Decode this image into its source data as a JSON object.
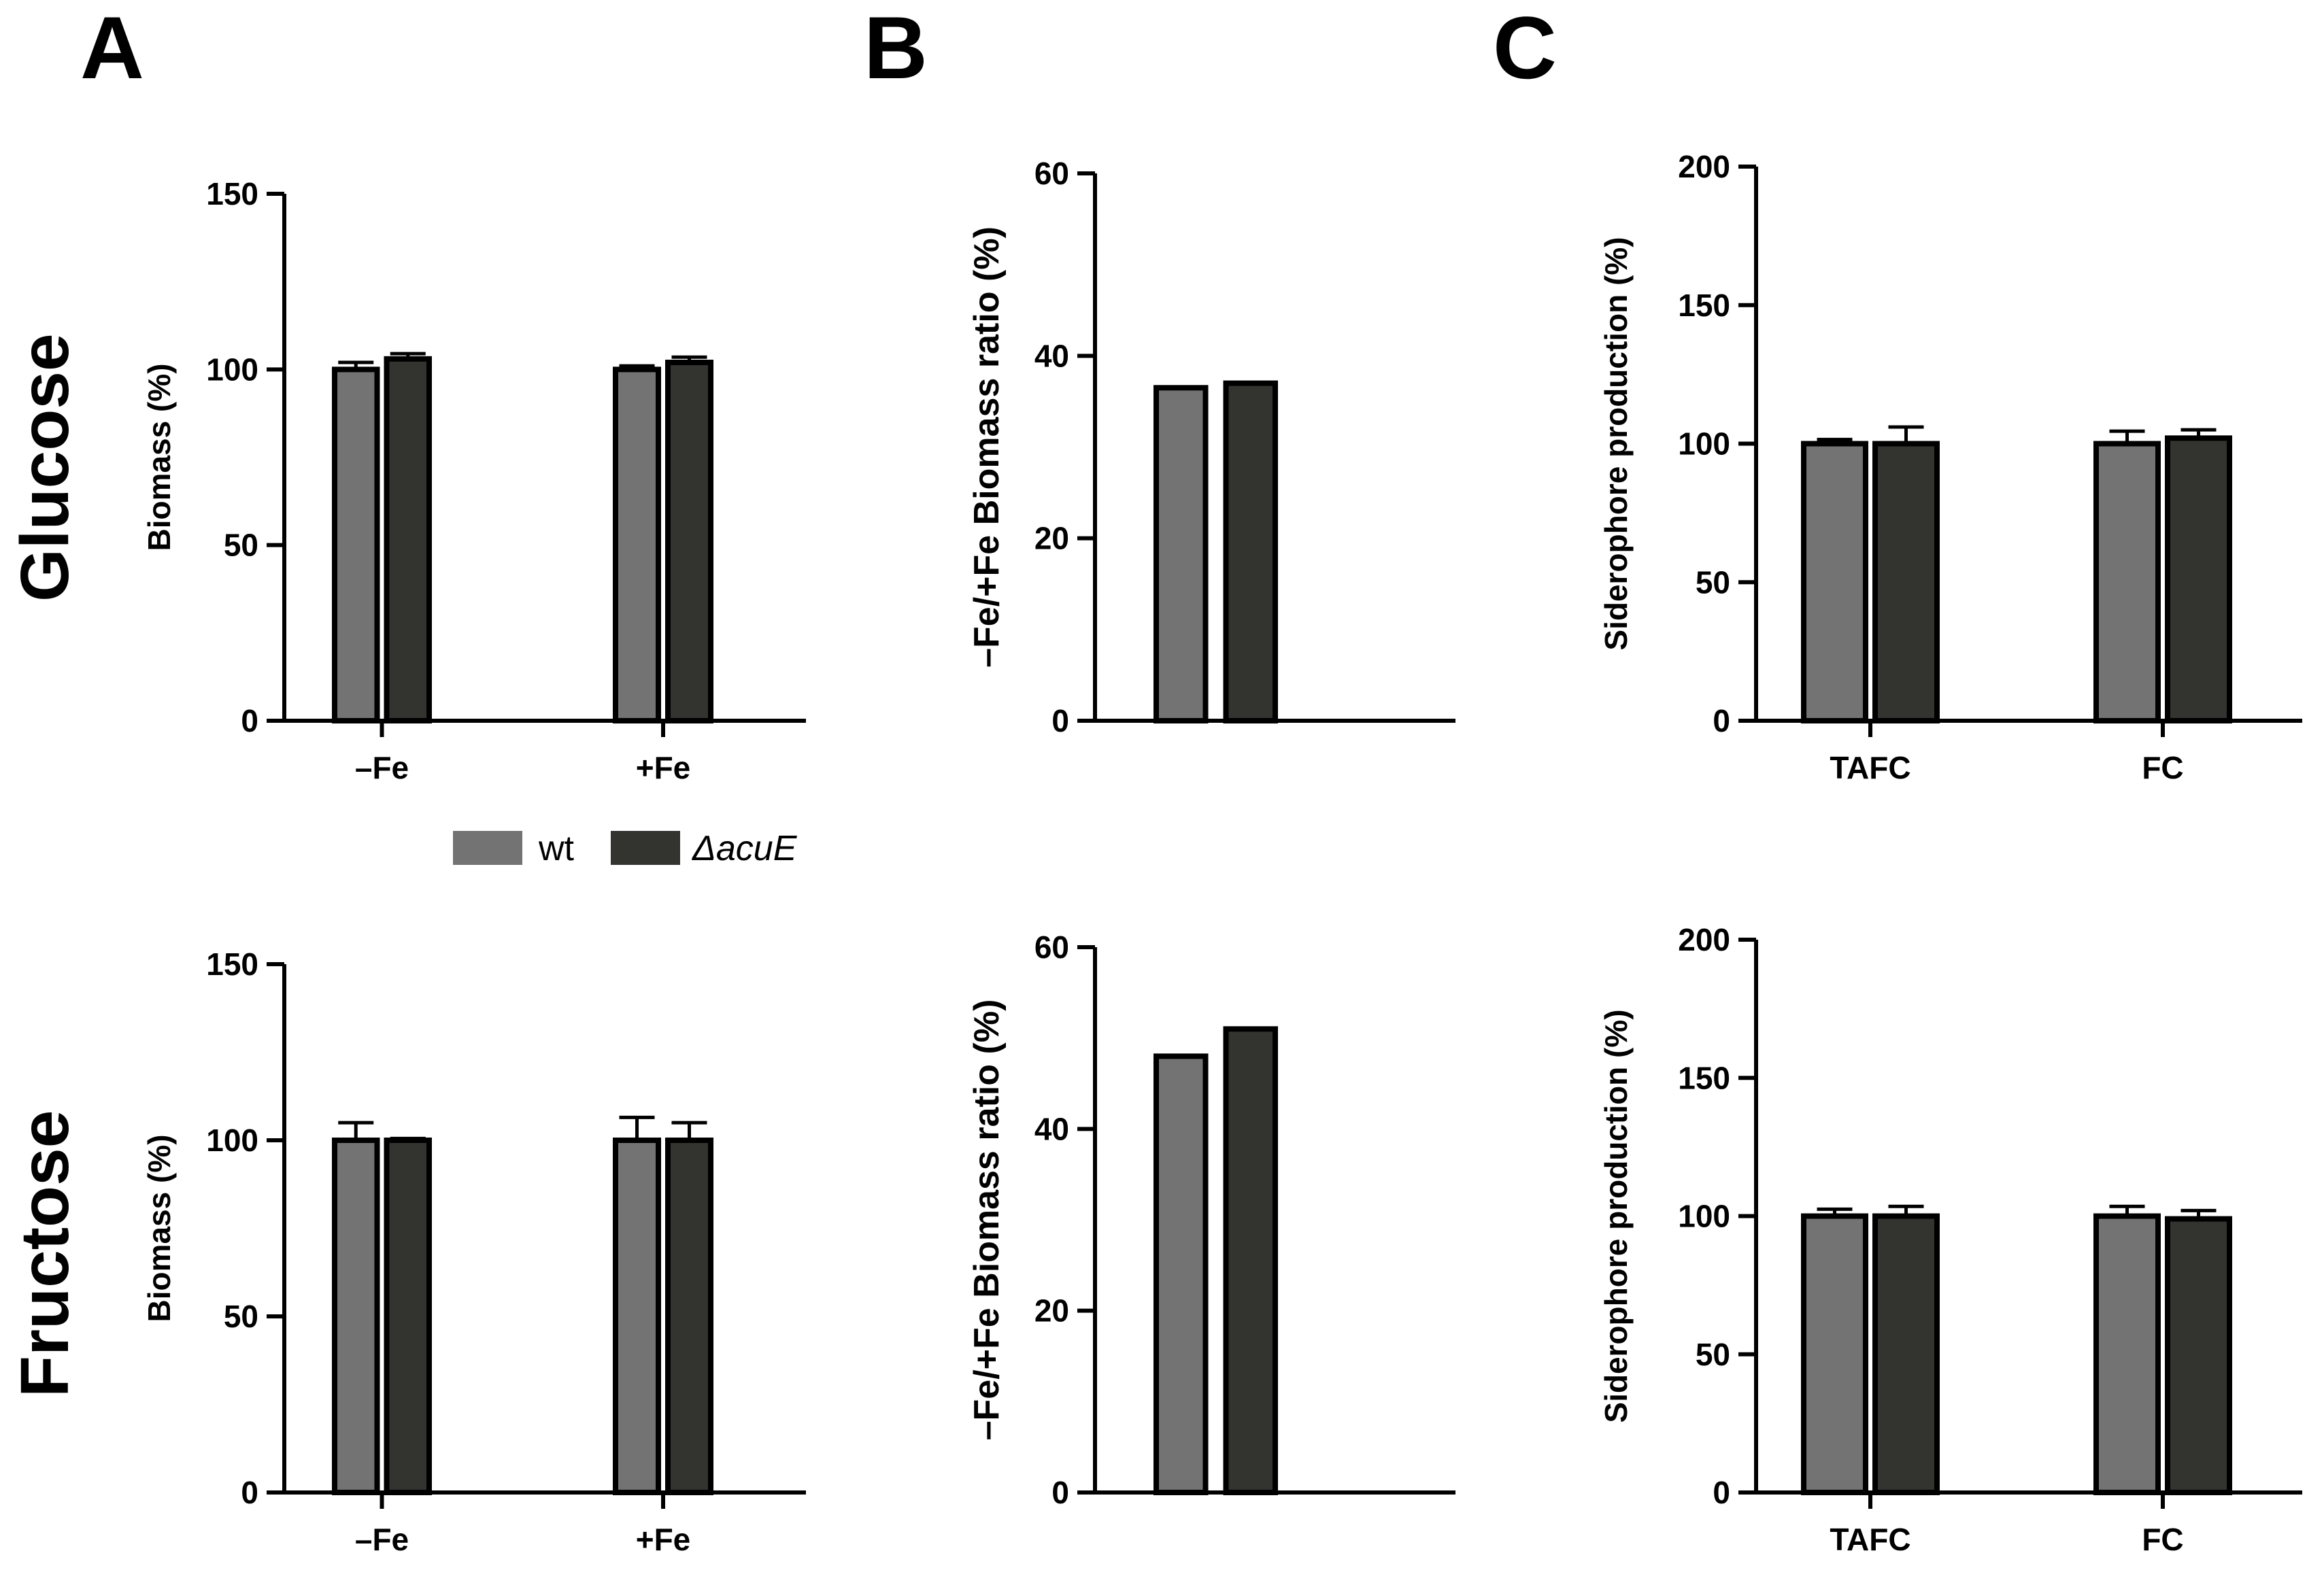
{
  "panels": {
    "A": "A",
    "B": "B",
    "C": "C"
  },
  "rows": {
    "glucose": "Glucose",
    "fructose": "Fructose"
  },
  "legend": {
    "wt": {
      "label": "wt",
      "color": "#737373"
    },
    "acuE": {
      "label": "ΔacuE",
      "color": "#333330"
    }
  },
  "chart_data": [
    {
      "id": "A-glucose",
      "type": "bar",
      "title": "",
      "xlabel": "",
      "ylabel": "Biomass (%)",
      "ylim": [
        0,
        150
      ],
      "yticks": [
        0,
        50,
        100,
        150
      ],
      "categories": [
        "–Fe",
        "+Fe"
      ],
      "series": [
        {
          "name": "wt",
          "values": [
            100,
            100
          ],
          "errors": [
            2,
            1
          ]
        },
        {
          "name": "ΔacuE",
          "values": [
            103,
            102
          ],
          "errors": [
            1.5,
            1.5
          ]
        }
      ]
    },
    {
      "id": "B-glucose",
      "type": "bar",
      "title": "",
      "xlabel": "",
      "ylabel": "–Fe/+Fe Biomass ratio (%)",
      "ylim": [
        0,
        60
      ],
      "yticks": [
        0,
        20,
        40,
        60
      ],
      "categories": [
        ""
      ],
      "series": [
        {
          "name": "wt",
          "values": [
            36.5
          ],
          "errors": [
            0
          ]
        },
        {
          "name": "ΔacuE",
          "values": [
            37
          ],
          "errors": [
            0
          ]
        }
      ]
    },
    {
      "id": "C-glucose",
      "type": "bar",
      "title": "",
      "xlabel": "",
      "ylabel": "Siderophore production (%)",
      "ylim": [
        0,
        200
      ],
      "yticks": [
        0,
        50,
        100,
        150,
        200
      ],
      "categories": [
        "TAFC",
        "FC"
      ],
      "series": [
        {
          "name": "wt",
          "values": [
            100,
            100
          ],
          "errors": [
            1.5,
            4.5
          ]
        },
        {
          "name": "ΔacuE",
          "values": [
            100,
            102
          ],
          "errors": [
            6,
            3
          ]
        }
      ]
    },
    {
      "id": "A-fructose",
      "type": "bar",
      "title": "",
      "xlabel": "",
      "ylabel": "Biomass (%)",
      "ylim": [
        0,
        150
      ],
      "yticks": [
        0,
        50,
        100,
        150
      ],
      "categories": [
        "–Fe",
        "+Fe"
      ],
      "series": [
        {
          "name": "wt",
          "values": [
            100,
            100
          ],
          "errors": [
            5,
            6.5
          ]
        },
        {
          "name": "ΔacuE",
          "values": [
            100,
            100
          ],
          "errors": [
            0.5,
            5
          ]
        }
      ]
    },
    {
      "id": "B-fructose",
      "type": "bar",
      "title": "",
      "xlabel": "",
      "ylabel": "–Fe/+Fe Biomass ratio (%)",
      "ylim": [
        0,
        60
      ],
      "yticks": [
        0,
        20,
        40,
        60
      ],
      "categories": [
        ""
      ],
      "series": [
        {
          "name": "wt",
          "values": [
            48
          ],
          "errors": [
            0
          ]
        },
        {
          "name": "ΔacuE",
          "values": [
            51
          ],
          "errors": [
            0
          ]
        }
      ]
    },
    {
      "id": "C-fructose",
      "type": "bar",
      "title": "",
      "xlabel": "",
      "ylabel": "Siderophore production (%)",
      "ylim": [
        0,
        200
      ],
      "yticks": [
        0,
        50,
        100,
        150,
        200
      ],
      "categories": [
        "TAFC",
        "FC"
      ],
      "series": [
        {
          "name": "wt",
          "values": [
            100,
            100
          ],
          "errors": [
            2.5,
            3.5
          ]
        },
        {
          "name": "ΔacuE",
          "values": [
            100,
            99
          ],
          "errors": [
            3.5,
            3
          ]
        }
      ]
    }
  ]
}
